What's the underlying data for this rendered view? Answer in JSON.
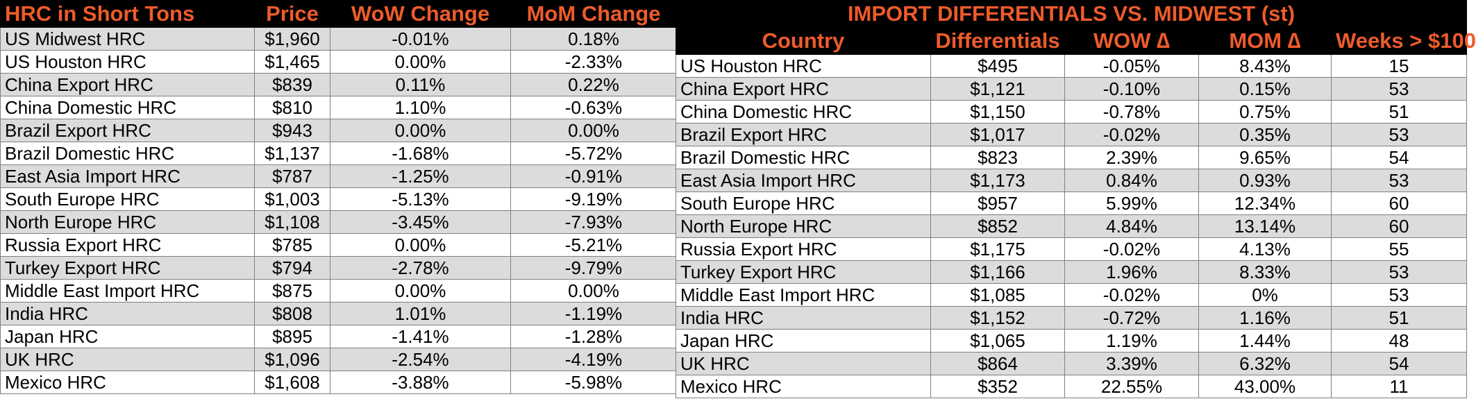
{
  "colors": {
    "header_bg": "#000000",
    "header_text": "#ee5b2b",
    "subheader_bg": "#1fa3b4",
    "row_shade": "#dcdcdc",
    "row_plain": "#ffffff"
  },
  "left": {
    "headers": [
      "HRC in Short Tons",
      "Price",
      "WoW Change",
      "MoM Change"
    ],
    "rows": [
      {
        "name": "US Midwest HRC",
        "price": "$1,960",
        "wow": "-0.01%",
        "mom": "0.18%"
      },
      {
        "name": "US Houston HRC",
        "price": "$1,465",
        "wow": "0.00%",
        "mom": "-2.33%"
      },
      {
        "name": "China Export HRC",
        "price": "$839",
        "wow": "0.11%",
        "mom": "0.22%"
      },
      {
        "name": "China Domestic HRC",
        "price": "$810",
        "wow": "1.10%",
        "mom": "-0.63%"
      },
      {
        "name": "Brazil Export HRC",
        "price": "$943",
        "wow": "0.00%",
        "mom": "0.00%"
      },
      {
        "name": "Brazil Domestic HRC",
        "price": "$1,137",
        "wow": "-1.68%",
        "mom": "-5.72%"
      },
      {
        "name": "East Asia Import HRC",
        "price": "$787",
        "wow": "-1.25%",
        "mom": "-0.91%"
      },
      {
        "name": "South Europe HRC",
        "price": "$1,003",
        "wow": "-5.13%",
        "mom": "-9.19%"
      },
      {
        "name": "North Europe HRC",
        "price": "$1,108",
        "wow": "-3.45%",
        "mom": "-7.93%"
      },
      {
        "name": "Russia Export HRC",
        "price": "$785",
        "wow": "0.00%",
        "mom": "-5.21%"
      },
      {
        "name": "Turkey Export HRC",
        "price": "$794",
        "wow": "-2.78%",
        "mom": "-9.79%"
      },
      {
        "name": "Middle East Import HRC",
        "price": "$875",
        "wow": "0.00%",
        "mom": "0.00%"
      },
      {
        "name": "India HRC",
        "price": "$808",
        "wow": "1.01%",
        "mom": "-1.19%"
      },
      {
        "name": "Japan HRC",
        "price": "$895",
        "wow": "-1.41%",
        "mom": "-1.28%"
      },
      {
        "name": "UK HRC",
        "price": "$1,096",
        "wow": "-2.54%",
        "mom": "-4.19%"
      },
      {
        "name": "Mexico HRC",
        "price": "$1,608",
        "wow": "-3.88%",
        "mom": "-5.98%"
      }
    ]
  },
  "right": {
    "title": "IMPORT DIFFERENTIALS VS. MIDWEST (st)",
    "columns": [
      "Country",
      "Differentials",
      "WOW ∆",
      "MOM ∆",
      "Weeks > $100"
    ],
    "rows": [
      {
        "country": "US Houston HRC",
        "diff": "$495",
        "wow": "-0.05%",
        "mom": "8.43%",
        "weeks": "15"
      },
      {
        "country": "China Export HRC",
        "diff": "$1,121",
        "wow": "-0.10%",
        "mom": "0.15%",
        "weeks": "53"
      },
      {
        "country": "China Domestic HRC",
        "diff": "$1,150",
        "wow": "-0.78%",
        "mom": "0.75%",
        "weeks": "51"
      },
      {
        "country": "Brazil Export HRC",
        "diff": "$1,017",
        "wow": "-0.02%",
        "mom": "0.35%",
        "weeks": "53"
      },
      {
        "country": "Brazil Domestic HRC",
        "diff": "$823",
        "wow": "2.39%",
        "mom": "9.65%",
        "weeks": "54"
      },
      {
        "country": "East Asia Import HRC",
        "diff": "$1,173",
        "wow": "0.84%",
        "mom": "0.93%",
        "weeks": "53"
      },
      {
        "country": "South Europe HRC",
        "diff": "$957",
        "wow": "5.99%",
        "mom": "12.34%",
        "weeks": "60"
      },
      {
        "country": "North Europe HRC",
        "diff": "$852",
        "wow": "4.84%",
        "mom": "13.14%",
        "weeks": "60"
      },
      {
        "country": "Russia Export HRC",
        "diff": "$1,175",
        "wow": "-0.02%",
        "mom": "4.13%",
        "weeks": "55"
      },
      {
        "country": "Turkey Export HRC",
        "diff": "$1,166",
        "wow": "1.96%",
        "mom": "8.33%",
        "weeks": "53"
      },
      {
        "country": "Middle East Import HRC",
        "diff": "$1,085",
        "wow": "-0.02%",
        "mom": "0%",
        "weeks": "53"
      },
      {
        "country": "India HRC",
        "diff": "$1,152",
        "wow": "-0.72%",
        "mom": "1.16%",
        "weeks": "51"
      },
      {
        "country": "Japan HRC",
        "diff": "$1,065",
        "wow": "1.19%",
        "mom": "1.44%",
        "weeks": "48"
      },
      {
        "country": "UK HRC",
        "diff": "$864",
        "wow": "3.39%",
        "mom": "6.32%",
        "weeks": "54"
      },
      {
        "country": "Mexico HRC",
        "diff": "$352",
        "wow": "22.55%",
        "mom": "43.00%",
        "weeks": "11"
      }
    ]
  }
}
